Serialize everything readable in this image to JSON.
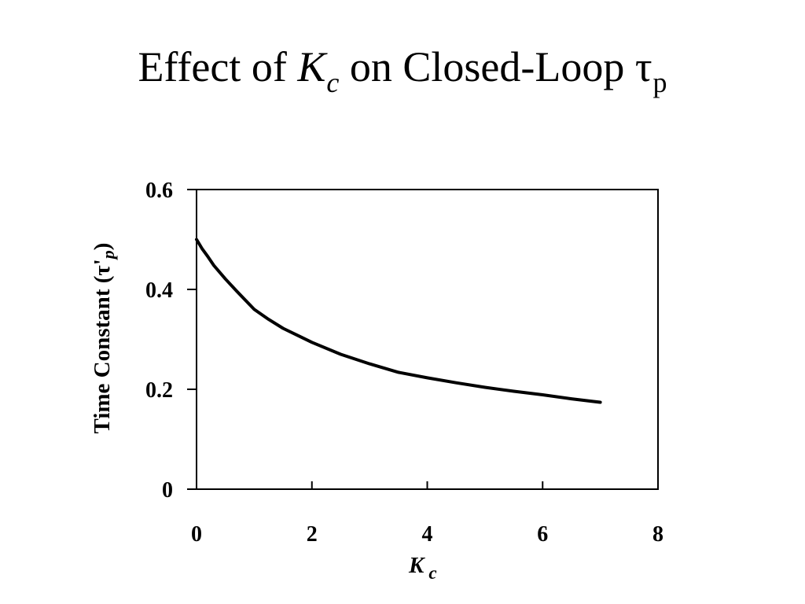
{
  "title": {
    "prefix": "Effect of ",
    "variable": "K",
    "variable_sub": "c",
    "middle": " on Closed-Loop ",
    "symbol": "τ",
    "symbol_sub": "p"
  },
  "chart_data": {
    "type": "line",
    "title": "",
    "xlabel": "K",
    "xlabel_sub": "c",
    "ylabel": "Time Constant (τ'",
    "ylabel_sub": "p",
    "ylabel_close": ")",
    "xlim": [
      0,
      8
    ],
    "ylim": [
      0,
      0.6
    ],
    "x_ticks": [
      0,
      2,
      4,
      6,
      8
    ],
    "y_ticks": [
      0,
      0.2,
      0.4,
      0.6
    ],
    "x_tick_labels": [
      "0",
      "2",
      "4",
      "6",
      "8"
    ],
    "y_tick_labels": [
      "0",
      "0.2",
      "0.4",
      "0.6"
    ],
    "grid": false,
    "series": [
      {
        "color": "#000000",
        "x": [
          0,
          0.1,
          0.2,
          0.3,
          0.5,
          0.7,
          1.0,
          1.25,
          1.5,
          2.0,
          2.5,
          3.0,
          3.5,
          4.0,
          4.5,
          5.0,
          5.5,
          6.0,
          6.5,
          7.0
        ],
        "y": [
          0.5,
          0.481,
          0.465,
          0.448,
          0.421,
          0.396,
          0.36,
          0.34,
          0.322,
          0.294,
          0.27,
          0.251,
          0.234,
          0.223,
          0.213,
          0.204,
          0.196,
          0.189,
          0.181,
          0.174
        ]
      }
    ]
  }
}
